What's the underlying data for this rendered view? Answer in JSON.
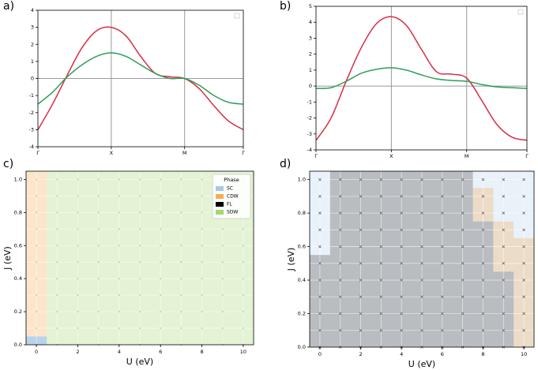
{
  "panel_labels": [
    "a)",
    "b)",
    "c)",
    "d)"
  ],
  "colors": {
    "red": "#d62d45",
    "green": "#2e9e57",
    "SC": "#a6c8e6",
    "CDW": "#f5ad52",
    "FL": "#000000",
    "SDW": "#a5d86f"
  },
  "chart_data": [
    {
      "panel": "a)",
      "type": "line",
      "x_ticks": [
        "Γ",
        "X",
        "M",
        "Γ"
      ],
      "ylim": [
        -4,
        4
      ],
      "y_ticks": [
        "-4",
        "-3",
        "-2",
        "-1",
        "0",
        "1",
        "2",
        "3",
        "4"
      ],
      "legend": "top-right (empty)",
      "series": [
        {
          "color": "red",
          "values": [
            -3.0,
            -1.5,
            0.2,
            1.8,
            2.8,
            3.0,
            2.5,
            1.3,
            0.3,
            0.1,
            0.0,
            -0.6,
            -1.6,
            -2.5,
            -3.0
          ]
        },
        {
          "color": "green",
          "values": [
            -1.5,
            -0.8,
            0.1,
            0.8,
            1.3,
            1.5,
            1.3,
            0.8,
            0.3,
            0.0,
            0.0,
            -0.4,
            -1.0,
            -1.4,
            -1.5
          ]
        }
      ]
    },
    {
      "panel": "b)",
      "type": "line",
      "x_ticks": [
        "Γ",
        "X",
        "M",
        "Γ"
      ],
      "ylim": [
        -4,
        5
      ],
      "y_ticks": [
        "-4",
        "-3",
        "-2",
        "-1",
        "0",
        "1",
        "2",
        "3",
        "4",
        "5"
      ],
      "legend": "top-right (empty)",
      "series": [
        {
          "color": "red",
          "values": [
            -3.4,
            -2.0,
            0.3,
            2.4,
            3.9,
            4.35,
            3.8,
            2.3,
            0.9,
            0.75,
            0.5,
            -0.9,
            -2.4,
            -3.2,
            -3.4
          ]
        },
        {
          "color": "green",
          "values": [
            -0.15,
            -0.1,
            0.3,
            0.8,
            1.05,
            1.15,
            1.0,
            0.7,
            0.45,
            0.35,
            0.3,
            0.1,
            -0.05,
            -0.1,
            -0.15
          ]
        }
      ]
    },
    {
      "panel": "c)",
      "type": "heatmap",
      "xlabel": "U (eV)",
      "ylabel": "J (eV)",
      "xlim": [
        -0.5,
        10.5
      ],
      "ylim": [
        0,
        1.05
      ],
      "x_ticks": [
        "0",
        "2",
        "4",
        "6",
        "8",
        "10"
      ],
      "y_ticks": [
        "0.0",
        "0.2",
        "0.4",
        "0.6",
        "0.8",
        "1.0"
      ],
      "legend": {
        "title": "Phase",
        "entries": [
          {
            "key": "SC",
            "label": "SC"
          },
          {
            "key": "CDW",
            "label": "CDW"
          },
          {
            "key": "FL",
            "label": "FL"
          },
          {
            "key": "SDW",
            "label": "SDW"
          }
        ]
      },
      "regions": [
        {
          "phase": "CDW",
          "u_range": [
            -0.5,
            0.5
          ],
          "j_range": [
            0.05,
            1.05
          ]
        },
        {
          "phase": "SC",
          "u_range": [
            -0.5,
            0.5
          ],
          "j_range": [
            0,
            0.05
          ]
        },
        {
          "phase": "SDW",
          "u_range": [
            0.5,
            10.5
          ],
          "j_range": [
            0,
            1.05
          ]
        }
      ]
    },
    {
      "panel": "d)",
      "type": "heatmap",
      "xlabel": "U (eV)",
      "ylabel": "J (eV)",
      "xlim": [
        -0.5,
        10.5
      ],
      "ylim": [
        0,
        1.05
      ],
      "x_ticks": [
        "0",
        "2",
        "4",
        "6",
        "8",
        "10"
      ],
      "y_ticks": [
        "0.0",
        "0.2",
        "0.4",
        "0.6",
        "0.8",
        "1.0"
      ],
      "fl_boundary": [
        {
          "u_range": [
            -0.5,
            0.5
          ],
          "j_max": 0.55
        },
        {
          "u_range": [
            0.5,
            7.5
          ],
          "j_max": 1.05
        },
        {
          "u_range": [
            7.5,
            8.5
          ],
          "j_max": 0.75
        },
        {
          "u_range": [
            8.5,
            9.5
          ],
          "j_max": 0.45
        },
        {
          "u_range": [
            9.5,
            10.5
          ],
          "j_max": 0.0
        }
      ],
      "cdw_region": [
        {
          "u_range": [
            7.5,
            8.5
          ],
          "j_range": [
            0.75,
            0.95
          ]
        },
        {
          "u_range": [
            8.5,
            9.5
          ],
          "j_range": [
            0.45,
            0.75
          ]
        },
        {
          "u_range": [
            9.5,
            10.5
          ],
          "j_range": [
            0.0,
            0.65
          ]
        }
      ]
    }
  ]
}
